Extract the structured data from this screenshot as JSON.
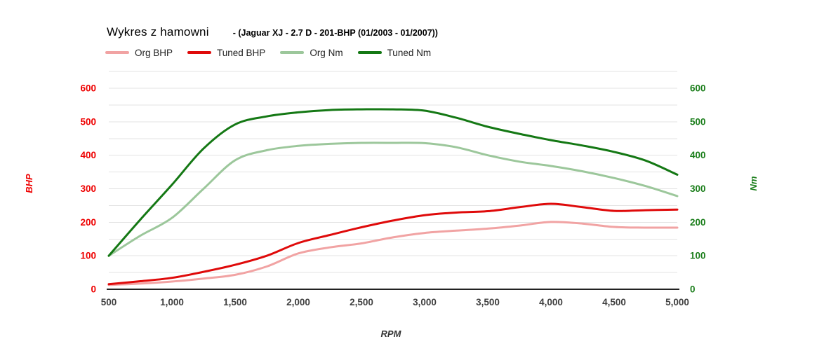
{
  "title": "Wykres z hamowni",
  "subtitle": "- (Jaguar XJ - 2.7 D - 201-BHP (01/2003 - 01/2007))",
  "axes": {
    "left_label": "BHP",
    "right_label": "Nm",
    "x_label": "RPM",
    "left_tick_color": "#ee0000",
    "right_tick_color": "#1b7e1b",
    "x_tick_color": "#404040",
    "grid_color": "#e3e3e3",
    "baseline_color": "#222222",
    "y_tick_labels": [
      "0",
      "100",
      "200",
      "300",
      "400",
      "500",
      "600"
    ],
    "y_tick_values": [
      0,
      100,
      200,
      300,
      400,
      500,
      600
    ],
    "x_tick_labels": [
      "500",
      "1,000",
      "1,500",
      "2,000",
      "2,500",
      "3,000",
      "3,500",
      "4,000",
      "4,500",
      "5,000"
    ],
    "x_tick_values": [
      500,
      1000,
      1500,
      2000,
      2500,
      3000,
      3500,
      4000,
      4500,
      5000
    ]
  },
  "chart_data": {
    "type": "line",
    "title": "Wykres z hamowni - (Jaguar XJ - 2.7 D - 201-BHP (01/2003 - 01/2007))",
    "xlabel": "RPM",
    "ylabel_left": "BHP",
    "ylabel_right": "Nm",
    "x_range": [
      500,
      5000
    ],
    "y_range": [
      0,
      650
    ],
    "y_grid_step": 50,
    "grid": "horizontal only",
    "legend_position": "top-left",
    "x": [
      500,
      750,
      1000,
      1250,
      1500,
      1750,
      2000,
      2250,
      2500,
      2750,
      3000,
      3250,
      3500,
      3750,
      4000,
      4250,
      4500,
      4750,
      5000
    ],
    "series": [
      {
        "name": "Org BHP",
        "axis": "left",
        "color": "#f1a3a3",
        "values": [
          13,
          17,
          23,
          32,
          43,
          68,
          107,
          125,
          137,
          155,
          168,
          175,
          181,
          190,
          201,
          196,
          186,
          184,
          184
        ]
      },
      {
        "name": "Tuned BHP",
        "axis": "left",
        "color": "#df0a0a",
        "values": [
          15,
          24,
          34,
          52,
          73,
          100,
          138,
          162,
          185,
          205,
          221,
          229,
          233,
          245,
          255,
          245,
          234,
          236,
          238
        ]
      },
      {
        "name": "Org Nm",
        "axis": "right",
        "color": "#9cc79b",
        "values": [
          100,
          160,
          213,
          300,
          385,
          415,
          428,
          434,
          437,
          437,
          436,
          424,
          400,
          381,
          368,
          352,
          332,
          308,
          278
        ]
      },
      {
        "name": "Tuned Nm",
        "axis": "right",
        "color": "#147814",
        "values": [
          100,
          208,
          312,
          420,
          492,
          516,
          528,
          535,
          537,
          537,
          533,
          512,
          485,
          464,
          445,
          429,
          410,
          384,
          342
        ]
      }
    ]
  }
}
